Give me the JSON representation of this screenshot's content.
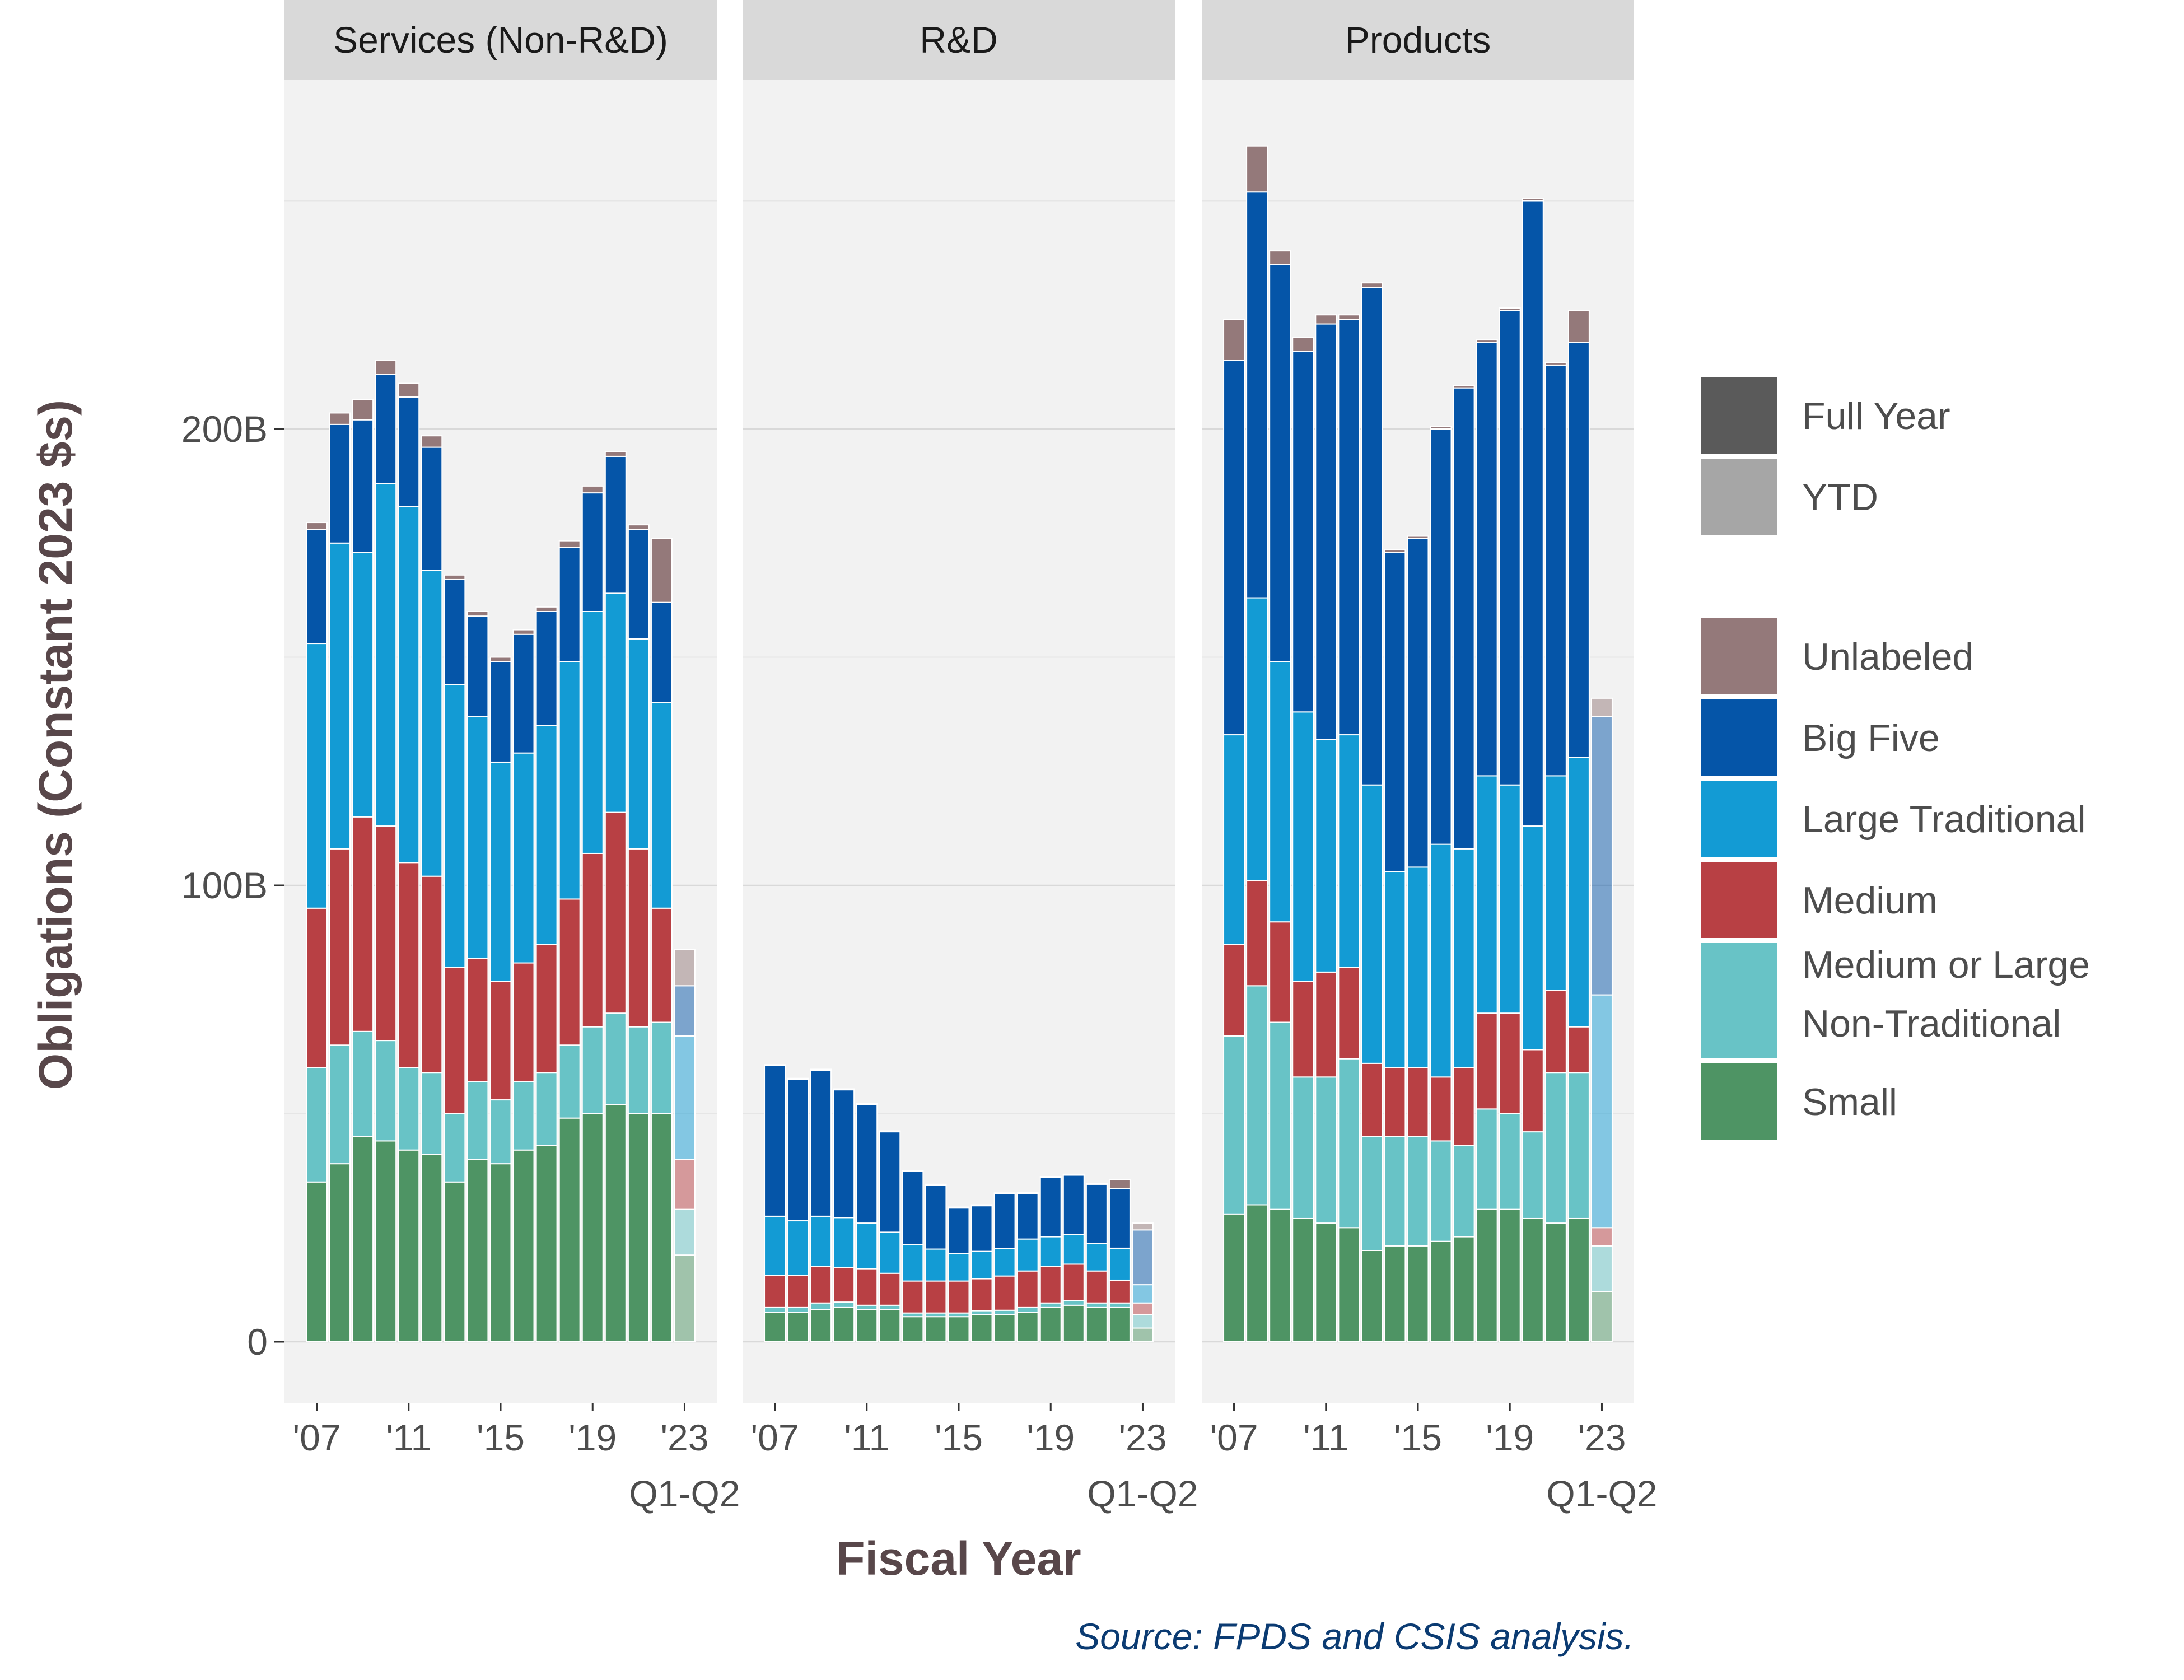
{
  "chart_data": {
    "type": "bar",
    "stacked": true,
    "facets": [
      "Services (Non-R&D)",
      "R&D",
      "Products"
    ],
    "categories": [
      "2007",
      "2008",
      "2009",
      "2010",
      "2011",
      "2012",
      "2013",
      "2014",
      "2015",
      "2016",
      "2017",
      "2018",
      "2019",
      "2020",
      "2021",
      "2022",
      "2023 Q1-Q2"
    ],
    "x_tick_labels": [
      "'07",
      "'11",
      "'15",
      "'19",
      "'23\nQ1-Q2"
    ],
    "x_tick_categories": [
      "2007",
      "2011",
      "2015",
      "2019",
      "2023 Q1-Q2"
    ],
    "ylabel": "Obligations (Constant 2023 $s)",
    "xlabel": "Fiscal Year",
    "y_ticks": [
      0,
      100,
      200
    ],
    "y_tick_labels": [
      "0",
      "100B",
      "200B"
    ],
    "y_unit": "billions",
    "ylim": [
      -13,
      290
    ],
    "grid": true,
    "legend_position": "right",
    "ytd_category": "2023 Q1-Q2",
    "legend_period": [
      {
        "name": "Full Year",
        "color": "#5a5a5a"
      },
      {
        "name": "YTD",
        "color": "#a6a6a6"
      }
    ],
    "series": [
      {
        "name": "Small",
        "color": "#4e9464",
        "values": {
          "Services (Non-R&D)": [
            35,
            39,
            45,
            44,
            42,
            41,
            35,
            40,
            39,
            42,
            43,
            49,
            50,
            52,
            50,
            50,
            19
          ],
          "R&D": [
            6.5,
            6.5,
            7,
            7.5,
            7,
            7,
            5.5,
            5.5,
            5.5,
            6,
            6,
            6.5,
            7.5,
            8,
            7.5,
            7.5,
            3
          ],
          "Products": [
            28,
            30,
            29,
            27,
            26,
            25,
            20,
            21,
            21,
            22,
            23,
            29,
            29,
            27,
            26,
            27,
            11
          ]
        }
      },
      {
        "name": "Medium or Large Non-Traditional",
        "color": "#68c3c6",
        "values": {
          "Services (Non-R&D)": [
            25,
            26,
            23,
            22,
            18,
            18,
            15,
            17,
            14,
            15,
            16,
            16,
            19,
            20,
            19,
            20,
            10
          ],
          "R&D": [
            1,
            1,
            1.5,
            1.2,
            1,
            1,
            0.8,
            0.8,
            0.8,
            0.8,
            0.9,
            1,
            1,
            1,
            1,
            1,
            3
          ],
          "Products": [
            39,
            48,
            41,
            31,
            32,
            37,
            25,
            24,
            24,
            22,
            20,
            22,
            21,
            19,
            33,
            32,
            10
          ]
        }
      },
      {
        "name": "Medium",
        "color": "#b84044",
        "values": {
          "Services (Non-R&D)": [
            35,
            43,
            47,
            47,
            45,
            43,
            32,
            27,
            26,
            26,
            28,
            32,
            38,
            44,
            39,
            25,
            11
          ],
          "R&D": [
            7,
            7,
            8,
            7.5,
            8,
            7,
            7,
            7,
            7,
            7,
            7.5,
            8,
            8,
            8,
            7,
            5,
            2.5
          ],
          "Products": [
            20,
            23,
            22,
            21,
            23,
            20,
            16,
            15,
            15,
            14,
            17,
            21,
            22,
            18,
            18,
            10,
            4
          ]
        }
      },
      {
        "name": "Large Traditional",
        "color": "#139bd4",
        "values": {
          "Services (Non-R&D)": [
            58,
            67,
            58,
            75,
            78,
            67,
            62,
            53,
            48,
            46,
            48,
            52,
            53,
            48,
            46,
            45,
            27
          ],
          "R&D": [
            13,
            12,
            11,
            11,
            10,
            9,
            8,
            7,
            6,
            6,
            6,
            7,
            6.5,
            6.5,
            6,
            7,
            4
          ],
          "Products": [
            46,
            62,
            57,
            59,
            51,
            51,
            61,
            43,
            44,
            51,
            48,
            52,
            50,
            49,
            47,
            59,
            51
          ]
        }
      },
      {
        "name": "Big Five",
        "color": "#0555a8",
        "values": {
          "Services (Non-R&D)": [
            25,
            26,
            29,
            24,
            24,
            27,
            23,
            22,
            22,
            26,
            25,
            25,
            26,
            30,
            24,
            22,
            11
          ],
          "R&D": [
            33,
            31,
            32,
            28,
            26,
            22,
            16,
            14,
            10,
            10,
            12,
            10,
            13,
            13,
            13,
            13,
            12
          ],
          "Products": [
            82,
            89,
            87,
            79,
            91,
            91,
            109,
            70,
            72,
            91,
            101,
            95,
            104,
            137,
            90,
            91,
            61
          ]
        }
      },
      {
        "name": "Unlabeled",
        "color": "#94797a",
        "values": {
          "Services (Non-R&D)": [
            1.5,
            2.5,
            4.5,
            3,
            3,
            2.5,
            1,
            1,
            1,
            1,
            1,
            1.5,
            1.5,
            1,
            1,
            14,
            8
          ],
          "R&D": [
            0.2,
            0.2,
            0.2,
            0.2,
            0.2,
            0.2,
            0.2,
            0.2,
            0.2,
            0.2,
            0.2,
            0.2,
            0.2,
            0.2,
            0.2,
            2,
            1.5
          ],
          "Products": [
            9,
            10,
            3,
            3,
            2,
            1,
            1,
            0.5,
            0.5,
            0.5,
            0.5,
            0.5,
            0.5,
            0.5,
            0.5,
            7,
            4
          ]
        }
      }
    ]
  },
  "caption": "Source: FPDS and CSIS analysis."
}
